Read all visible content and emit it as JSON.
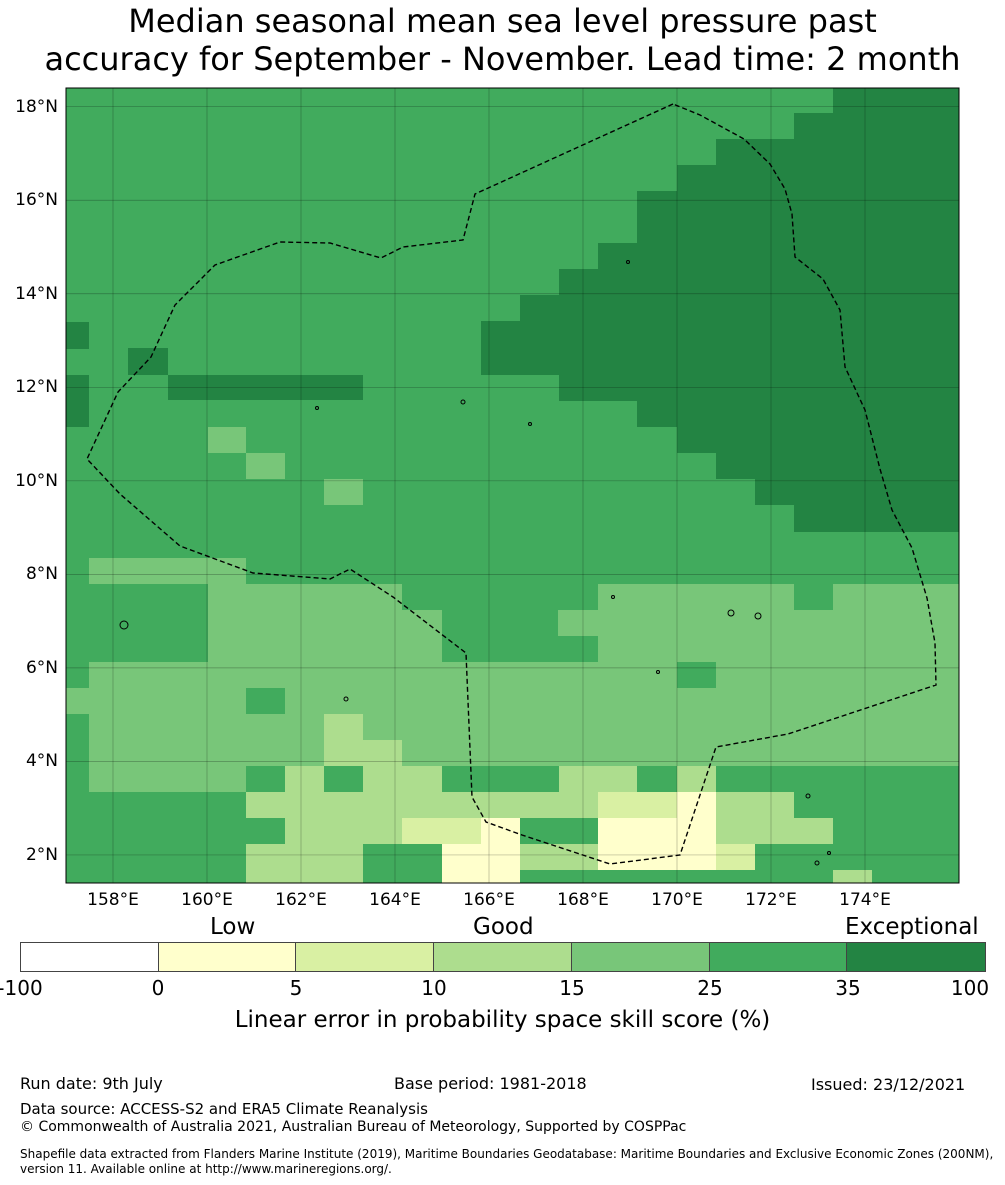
{
  "title_line1": "Median seasonal mean sea level pressure past",
  "title_line2": "accuracy for September - November. Lead time: 2 month",
  "map": {
    "lat_labels": [
      "18°N",
      "16°N",
      "14°N",
      "12°N",
      "10°N",
      "8°N",
      "6°N",
      "4°N",
      "2°N"
    ],
    "lat_values": [
      18,
      16,
      14,
      12,
      10,
      8,
      6,
      4,
      2
    ],
    "lon_labels": [
      "158°E",
      "160°E",
      "162°E",
      "164°E",
      "166°E",
      "168°E",
      "170°E",
      "172°E",
      "174°E"
    ],
    "lon_values": [
      158,
      160,
      162,
      164,
      166,
      168,
      170,
      172,
      174
    ],
    "lon_range": [
      157.0,
      176.0
    ],
    "lat_range": [
      1.4,
      18.4
    ],
    "grid_cell_degrees": 0.833,
    "eez_boundary_style": "dashed black line",
    "skill_field_rows_north_to_south": [
      "..........TTTTTTTTTTTTTTTTTTTTTTTTTTT.....",
      "...........TTTTTTTTTTTTTTTTTTTTTTTTTT.....",
      "............TTTTTTTTTTTTTTTTTTTTTTTTTT....",
      "..............TTTTTTTTTTTTTTTTTTTTTTTT....",
      "...............TTTTTTTTTTTTTTTTTTTTTTT....",
      "................TTTTTTTTTTTTTTTTTTTTTT....",
      "..................TTTTTTTTTTTTTTTTTTTT....",
      "..............TTTTTTTTTTTTTTTTTTTTTTTT....",
      "...............TTTTTTTTTTTTTTTTTTTTTTTT...",
      "................TTTTTTTTTTTTTTTTTTTTTT....",
      "....TTTTTTTTTTTTTTTTTTTTTTTTTTTTTTTTTTT...",
      "....................................TTTTTT",
      "..........................................",
      "..........................................",
      "..........................................",
      "..........................................",
      "..........................................",
      ".................................TTTTTTTTT",
      "...................................TTTTTTT",
      "..................................TTTTTTTT",
      "..................................TTTTTTTT",
      "..................................TTTTTTTT"
    ]
  },
  "colorbar": {
    "tier_labels": [
      "Low",
      "Good",
      "Exceptional"
    ],
    "bins": [
      {
        "from": -100,
        "to": 0,
        "color": "#ffffff"
      },
      {
        "from": 0,
        "to": 5,
        "color": "#ffffcc"
      },
      {
        "from": 5,
        "to": 10,
        "color": "#d9f0a3"
      },
      {
        "from": 10,
        "to": 15,
        "color": "#addd8e"
      },
      {
        "from": 15,
        "to": 25,
        "color": "#78c679"
      },
      {
        "from": 25,
        "to": 35,
        "color": "#41ab5d"
      },
      {
        "from": 35,
        "to": 100,
        "color": "#238443"
      }
    ],
    "tick_labels": [
      "-100",
      "0",
      "5",
      "10",
      "15",
      "25",
      "35",
      "100"
    ],
    "label": "Linear error in probability space skill score (%)"
  },
  "footer": {
    "run_date": "Run date: 9th July",
    "base_period": "Base period: 1981-2018",
    "issued": "Issued: 23/12/2021",
    "data_source": "Data source: ACCESS-S2 and ERA5 Climate Reanalysis",
    "copyright": "© Commonwealth of Australia 2021, Australian Bureau of Meteorology, Supported by COSPPac",
    "shapefile_line1": "Shapefile data extracted from Flanders Marine Institute (2019), Maritime Boundaries Geodatabase: Maritime Boundaries and Exclusive Economic Zones (200NM),",
    "shapefile_line2": "version 11. Available online at http://www.marineregions.org/."
  }
}
